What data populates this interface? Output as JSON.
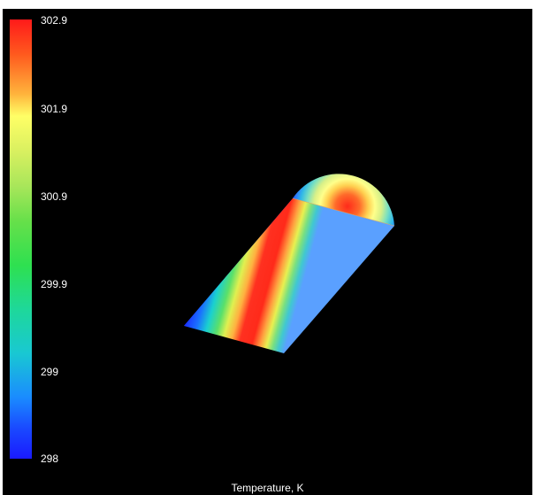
{
  "colorbar": {
    "ticks": [
      "302.9",
      "301.9",
      "300.9",
      "299.9",
      "299",
      "298"
    ],
    "caption": "Temperature, K",
    "range": [
      298,
      302.9
    ],
    "colormap": "jet"
  },
  "colors": {
    "background": "#000000",
    "hot": "#ff1a1a",
    "cold": "#1a1aff"
  }
}
